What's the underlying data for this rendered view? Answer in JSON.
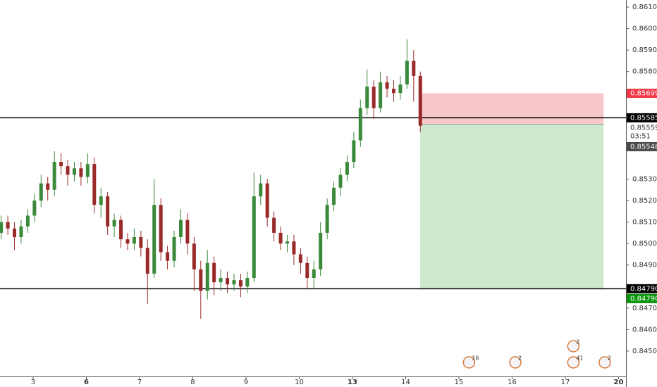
{
  "chart_data": {
    "type": "candlestick",
    "bull_color": "#3b8a3b",
    "bear_color": "#9a2a2a",
    "xlim": [
      -0.622,
      11.139
    ],
    "ylim": [
      0.84382,
      0.86133
    ],
    "xticks": [
      {
        "value": 0,
        "label": "3"
      },
      {
        "value": 1,
        "label": "6"
      },
      {
        "value": 2,
        "label": "7"
      },
      {
        "value": 3,
        "label": "8"
      },
      {
        "value": 4,
        "label": "9"
      },
      {
        "value": 5,
        "label": "10"
      },
      {
        "value": 6,
        "label": "13"
      },
      {
        "value": 7,
        "label": "14"
      },
      {
        "value": 8,
        "label": "15"
      },
      {
        "value": 9,
        "label": "16"
      },
      {
        "value": 10,
        "label": "17"
      },
      {
        "value": 11,
        "label": "20"
      }
    ],
    "bold_xticks": [
      1,
      6,
      11
    ],
    "yticks": [
      {
        "value": 0.861,
        "label": "0.86100"
      },
      {
        "value": 0.86,
        "label": "0.86000"
      },
      {
        "value": 0.859,
        "label": "0.85900"
      },
      {
        "value": 0.858,
        "label": "0.85800"
      },
      {
        "value": 0.853,
        "label": "0.85300"
      },
      {
        "value": 0.852,
        "label": "0.85200"
      },
      {
        "value": 0.851,
        "label": "0.85100"
      },
      {
        "value": 0.85,
        "label": "0.85000"
      },
      {
        "value": 0.849,
        "label": "0.84900"
      },
      {
        "value": 0.847,
        "label": "0.84700"
      },
      {
        "value": 0.846,
        "label": "0.84600"
      },
      {
        "value": 0.845,
        "label": "0.84500"
      }
    ],
    "x": [
      -0.6,
      -0.475,
      -0.35,
      -0.225,
      -0.1,
      0.025,
      0.15,
      0.275,
      0.4,
      0.525,
      0.65,
      0.775,
      0.9,
      1.025,
      1.15,
      1.275,
      1.4,
      1.525,
      1.65,
      1.775,
      1.9,
      2.025,
      2.15,
      2.275,
      2.4,
      2.525,
      2.65,
      2.775,
      2.9,
      3.025,
      3.15,
      3.275,
      3.4,
      3.525,
      3.65,
      3.775,
      3.9,
      4.025,
      4.15,
      4.275,
      4.4,
      4.525,
      4.65,
      4.775,
      4.9,
      5.025,
      5.15,
      5.275,
      5.4,
      5.525,
      5.65,
      5.775,
      5.9,
      6.025,
      6.15,
      6.275,
      6.4,
      6.525,
      6.65,
      6.775,
      6.9,
      7.025,
      7.15,
      7.275
    ],
    "open": [
      0.8505,
      0.851,
      0.8507,
      0.8503,
      0.8508,
      0.8513,
      0.852,
      0.8528,
      0.8525,
      0.8538,
      0.8536,
      0.8532,
      0.8535,
      0.8531,
      0.8537,
      0.8518,
      0.8522,
      0.8508,
      0.8511,
      0.8502,
      0.85,
      0.8503,
      0.8498,
      0.8486,
      0.8518,
      0.8496,
      0.8492,
      0.8503,
      0.8511,
      0.85,
      0.8488,
      0.8478,
      0.8491,
      0.8482,
      0.8484,
      0.8481,
      0.8483,
      0.848,
      0.8484,
      0.8522,
      0.8528,
      0.8512,
      0.8505,
      0.85,
      0.8501,
      0.8495,
      0.8491,
      0.8484,
      0.8488,
      0.8505,
      0.8518,
      0.8526,
      0.8532,
      0.8538,
      0.8548,
      0.8563,
      0.8573,
      0.8563,
      0.8575,
      0.8572,
      0.857,
      0.8574,
      0.8585,
      0.8578
    ],
    "high": [
      0.8513,
      0.8513,
      0.851,
      0.8511,
      0.8516,
      0.8523,
      0.8532,
      0.8531,
      0.8543,
      0.8542,
      0.8539,
      0.8538,
      0.8538,
      0.8542,
      0.854,
      0.8526,
      0.8524,
      0.8514,
      0.8513,
      0.8505,
      0.8507,
      0.8506,
      0.8502,
      0.853,
      0.8521,
      0.8499,
      0.8506,
      0.8516,
      0.8514,
      0.8503,
      0.8492,
      0.8497,
      0.8494,
      0.8488,
      0.8487,
      0.8486,
      0.8486,
      0.8487,
      0.8533,
      0.8532,
      0.853,
      0.8515,
      0.8508,
      0.8504,
      0.8504,
      0.8498,
      0.8494,
      0.8492,
      0.851,
      0.8521,
      0.8529,
      0.8535,
      0.8541,
      0.8552,
      0.8567,
      0.8581,
      0.8576,
      0.858,
      0.8578,
      0.8576,
      0.8578,
      0.8595,
      0.859,
      0.858
    ],
    "low": [
      0.8502,
      0.8504,
      0.8497,
      0.85,
      0.8505,
      0.851,
      0.8517,
      0.852,
      0.8522,
      0.8532,
      0.8527,
      0.8529,
      0.8527,
      0.8528,
      0.8514,
      0.8512,
      0.8504,
      0.8503,
      0.8498,
      0.8497,
      0.8497,
      0.8494,
      0.8472,
      0.8484,
      0.8492,
      0.8488,
      0.8489,
      0.85,
      0.8495,
      0.8478,
      0.8465,
      0.8474,
      0.8476,
      0.8478,
      0.8477,
      0.8478,
      0.8475,
      0.8477,
      0.8482,
      0.8518,
      0.8508,
      0.8501,
      0.8497,
      0.8496,
      0.849,
      0.8486,
      0.8479,
      0.8479,
      0.8485,
      0.8502,
      0.8515,
      0.8522,
      0.8529,
      0.8535,
      0.8545,
      0.856,
      0.8558,
      0.8561,
      0.8568,
      0.8566,
      0.8567,
      0.8572,
      0.8566,
      0.8552
    ],
    "close": [
      0.851,
      0.8507,
      0.8503,
      0.8508,
      0.8513,
      0.852,
      0.8528,
      0.8525,
      0.8538,
      0.8536,
      0.8532,
      0.8535,
      0.8531,
      0.8537,
      0.8518,
      0.8522,
      0.8508,
      0.8511,
      0.8502,
      0.85,
      0.8503,
      0.8498,
      0.8486,
      0.8518,
      0.8496,
      0.8492,
      0.8503,
      0.8511,
      0.85,
      0.8488,
      0.8478,
      0.8491,
      0.8482,
      0.8484,
      0.8481,
      0.8483,
      0.848,
      0.8484,
      0.8522,
      0.8528,
      0.8512,
      0.8505,
      0.85,
      0.8501,
      0.8495,
      0.8491,
      0.8484,
      0.8488,
      0.8505,
      0.8518,
      0.8526,
      0.8532,
      0.8538,
      0.8548,
      0.8563,
      0.8573,
      0.8563,
      0.8575,
      0.8572,
      0.857,
      0.8574,
      0.8585,
      0.8578,
      0.85548
    ],
    "hlines": [
      0.85585,
      0.8479
    ],
    "position": {
      "x0": 7.27,
      "x1": 10.72,
      "entry": 0.85555,
      "stop": 0.85699,
      "target": 0.8479,
      "stop_color": "#f7c7c9",
      "target_color": "#cde9cb"
    },
    "price_labels": [
      {
        "value": 0.85699,
        "label": "0.85699",
        "color": "#f23645"
      },
      {
        "value": 0.85585,
        "label": "0.85585",
        "color": "#000000"
      },
      {
        "value": 0.85559,
        "label": "0.85559",
        "color": "#ffffff"
      },
      {
        "value": 0.85548,
        "label": "0.85548",
        "color": "#4a4a4a"
      },
      {
        "value": 0.8479,
        "label": "0.84790",
        "color": "#000000"
      },
      {
        "value": 0.8479,
        "label": "0.84790",
        "color": "#089308"
      }
    ],
    "countdown": "03:51",
    "events": [
      {
        "x": 8.19,
        "label": "16"
      },
      {
        "x": 9.06,
        "label": "2"
      },
      {
        "x": 10.15,
        "label": "41"
      },
      {
        "x": 10.15,
        "label": "2"
      },
      {
        "x": 10.74,
        "label": "2"
      }
    ]
  }
}
